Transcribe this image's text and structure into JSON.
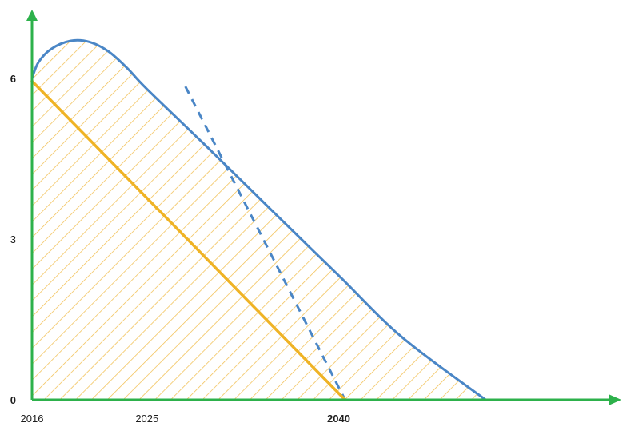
{
  "chart_data": {
    "type": "area",
    "title": "",
    "xlabel": "",
    "ylabel": "",
    "x_ticks": [
      {
        "value": 2016,
        "label": "2016",
        "bold": false
      },
      {
        "value": 2025,
        "label": "2025",
        "bold": false
      },
      {
        "value": 2040,
        "label": "2040",
        "bold": true
      }
    ],
    "y_ticks": [
      {
        "value": 0,
        "label": "0",
        "bold": true
      },
      {
        "value": 3,
        "label": "3",
        "bold": false
      },
      {
        "value": 6,
        "label": "6",
        "bold": true
      }
    ],
    "xlim": [
      2016,
      2062
    ],
    "ylim": [
      0,
      6.8
    ],
    "grid": false,
    "legend": "none",
    "series": [
      {
        "style": "solid-blue-hatched-area",
        "color": "#4a86c6",
        "x": [
          2016,
          2016.5,
          2017.5,
          2019,
          2020.5,
          2022,
          2023.5,
          2025,
          2030,
          2035,
          2040,
          2045,
          2051.5
        ],
        "y": [
          6.0,
          6.3,
          6.55,
          6.7,
          6.68,
          6.5,
          6.18,
          5.8,
          4.65,
          3.48,
          2.32,
          1.16,
          0.0
        ]
      },
      {
        "style": "dashed-blue",
        "color": "#4a86c6",
        "x": [
          2028,
          2040.5
        ],
        "y": [
          5.85,
          0.0
        ]
      },
      {
        "style": "solid-orange",
        "color": "#efb325",
        "x": [
          2016,
          2040.5
        ],
        "y": [
          5.95,
          0.0
        ]
      }
    ],
    "colors": {
      "axis": "#2db14b",
      "hatch": "#f1bf52",
      "area_line": "#4a86c6",
      "orange_line": "#efb325"
    }
  }
}
